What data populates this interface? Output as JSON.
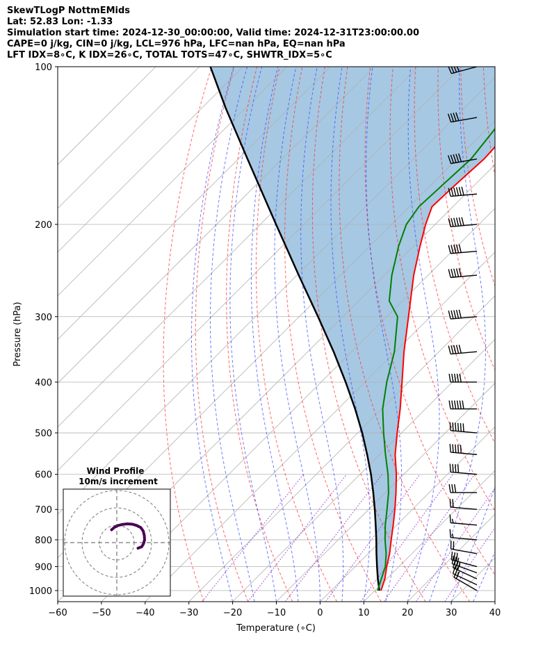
{
  "header": {
    "line1": "SkewTLogP NottmEMids",
    "line2": "Lat: 52.83   Lon: -1.33",
    "line3": "Simulation start time: 2024-12-30_00:00:00, Valid time: 2024-12-31T23:00:00.00",
    "line4": "CAPE=0 j/kg, CIN=0 j/kg, LCL=976 hPa, LFC=nan hPa, EQ=nan hPa",
    "line5": "LFT IDX=8∘C, K IDX=26∘C, TOTAL TOTS=47∘C, SHWTR_IDX=5∘C"
  },
  "chart_data": {
    "type": "skewt",
    "xlabel": "Temperature (∘C)",
    "ylabel": "Pressure (hPa)",
    "xlim": [
      -60,
      40
    ],
    "ylim": [
      1050,
      100
    ],
    "x_ticks": [
      -60,
      -50,
      -40,
      -30,
      -20,
      -10,
      0,
      10,
      20,
      30,
      40
    ],
    "x_tick_labels": [
      "−60",
      "−50",
      "−40",
      "−30",
      "−20",
      "−10",
      "0",
      "10",
      "20",
      "30",
      "40"
    ],
    "y_ticks": [
      1000,
      900,
      800,
      700,
      600,
      500,
      400,
      300,
      200,
      100
    ],
    "y_tick_labels": [
      "1000",
      "900",
      "800",
      "700",
      "600",
      "500",
      "400",
      "300",
      "200",
      "100"
    ],
    "skew_deg": 45,
    "temperature": {
      "color": "#ff0000",
      "p": [
        1000,
        950,
        900,
        850,
        800,
        750,
        700,
        650,
        600,
        550,
        500,
        450,
        400,
        350,
        300,
        250,
        220,
        200,
        185,
        170,
        150,
        130,
        115,
        100
      ],
      "t": [
        11.4,
        9.6,
        7.2,
        4.9,
        2.1,
        -0.8,
        -4.0,
        -7.6,
        -11.7,
        -16.5,
        -21.0,
        -25.8,
        -31.5,
        -38.0,
        -45.0,
        -53.3,
        -58.5,
        -62.2,
        -64.8,
        -64.5,
        -63.8,
        -64.5,
        -67.7,
        -73.4
      ]
    },
    "dewpoint": {
      "color": "#008000",
      "p": [
        1000,
        950,
        900,
        850,
        800,
        750,
        700,
        650,
        600,
        550,
        500,
        450,
        400,
        350,
        300,
        280,
        250,
        220,
        200,
        185,
        170,
        150,
        130,
        115,
        100
      ],
      "td": [
        10.6,
        8.8,
        6.9,
        4.1,
        0.7,
        -2.6,
        -5.8,
        -9.3,
        -13.6,
        -18.7,
        -24.1,
        -29.8,
        -35.0,
        -40.2,
        -47.5,
        -53.0,
        -58.3,
        -63.4,
        -66.6,
        -67.8,
        -67.4,
        -66.8,
        -68.3,
        -71.5,
        -75.6
      ]
    },
    "parcel": {
      "color": "#000000",
      "p": [
        1000,
        950,
        900,
        850,
        800,
        750,
        700,
        650,
        600,
        550,
        500,
        450,
        400,
        350,
        300,
        250,
        200,
        150,
        120,
        100
      ],
      "t": [
        11.0,
        8.0,
        5.0,
        1.9,
        -1.3,
        -4.8,
        -8.6,
        -12.8,
        -17.5,
        -22.9,
        -29.0,
        -36.1,
        -44.4,
        -54.1,
        -65.7,
        -79.6,
        -96.4,
        -117.9,
        -134.5,
        -147.5
      ]
    },
    "cape_cin_shading": "#a6c8e3",
    "dry_adiabats_theta_c": [
      -30,
      -20,
      -10,
      0,
      10,
      20,
      30,
      40,
      50,
      60,
      70,
      80,
      90,
      100,
      110
    ],
    "moist_adiabats_t_c": [
      -20,
      -15,
      -10,
      -5,
      0,
      5,
      10,
      15,
      20,
      25,
      30,
      35
    ],
    "mixing_ratio_lines_gkg": [
      0.4,
      1,
      2,
      4,
      7,
      10,
      16,
      24
    ],
    "wind_barbs": {
      "p": [
        1000,
        975,
        950,
        925,
        900,
        850,
        800,
        750,
        700,
        650,
        600,
        550,
        500,
        450,
        400,
        350,
        300,
        250,
        225,
        200,
        175,
        150,
        125,
        100
      ],
      "speed_kt": [
        20,
        25,
        30,
        35,
        30,
        20,
        15,
        15,
        20,
        30,
        40,
        50,
        60,
        60,
        50,
        50,
        50,
        50,
        50,
        60,
        60,
        50,
        40,
        40
      ],
      "dir_deg": [
        240,
        245,
        245,
        250,
        255,
        260,
        265,
        265,
        265,
        270,
        265,
        265,
        265,
        270,
        270,
        275,
        275,
        275,
        275,
        275,
        275,
        280,
        280,
        285
      ]
    },
    "hodograph": {
      "title": "Wind Profile",
      "subtitle": "10m/s increment",
      "rings_ms": [
        10,
        20,
        30
      ],
      "u": [
        12.2,
        14.3,
        15.4,
        16.0,
        15.8,
        15.2,
        13.8,
        11.4,
        8.9,
        6.1,
        3.2,
        0.6,
        -1.4,
        -3.0
      ],
      "v": [
        -3.2,
        -2.4,
        -0.6,
        1.7,
        4.3,
        6.7,
        8.7,
        9.9,
        10.6,
        10.8,
        10.5,
        9.8,
        8.8,
        7.4
      ],
      "color": "#4b0055"
    }
  }
}
